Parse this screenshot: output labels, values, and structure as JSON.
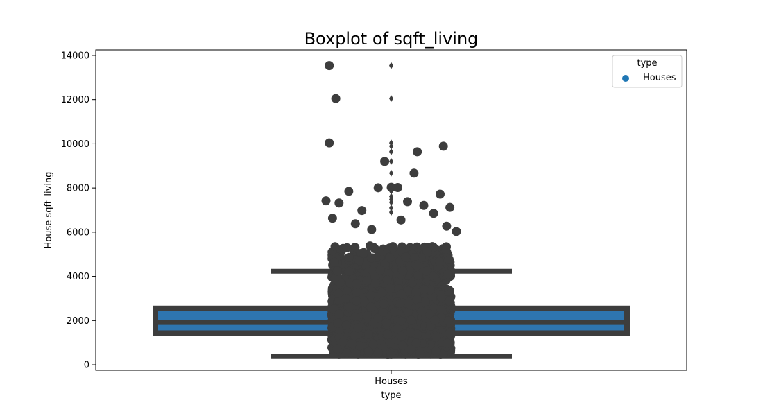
{
  "chart_data": {
    "type": "box",
    "title": "Boxplot of sqft_living",
    "xlabel": "type",
    "ylabel": "House sqft_living",
    "categories": [
      "Houses"
    ],
    "ylim": [
      -250,
      14250
    ],
    "yticks": [
      0,
      2000,
      4000,
      6000,
      8000,
      10000,
      12000,
      14000
    ],
    "box": {
      "category": "Houses",
      "q1": 1430,
      "median": 1910,
      "q3": 2550,
      "whisker_low": 370,
      "whisker_high": 4230
    },
    "outliers": [
      13540,
      12050,
      10040,
      9890,
      9640,
      9200,
      8670,
      8010,
      7850,
      7620,
      7480,
      7350,
      7100,
      6900
    ],
    "strip_points_sample": [
      {
        "jitter": -0.19,
        "y": 13540
      },
      {
        "jitter": -0.17,
        "y": 12050
      },
      {
        "jitter": -0.19,
        "y": 10040
      },
      {
        "jitter": 0.16,
        "y": 9890
      },
      {
        "jitter": 0.08,
        "y": 9640
      },
      {
        "jitter": -0.02,
        "y": 9200
      },
      {
        "jitter": 0.07,
        "y": 8670
      },
      {
        "jitter": -0.04,
        "y": 8010
      },
      {
        "jitter": -0.0,
        "y": 8030
      },
      {
        "jitter": 0.02,
        "y": 8020
      },
      {
        "jitter": -0.13,
        "y": 7850
      },
      {
        "jitter": 0.15,
        "y": 7720
      },
      {
        "jitter": -0.2,
        "y": 7420
      },
      {
        "jitter": -0.16,
        "y": 7320
      },
      {
        "jitter": 0.05,
        "y": 7380
      },
      {
        "jitter": 0.1,
        "y": 7210
      },
      {
        "jitter": 0.18,
        "y": 7120
      },
      {
        "jitter": -0.09,
        "y": 6980
      },
      {
        "jitter": 0.13,
        "y": 6850
      },
      {
        "jitter": -0.18,
        "y": 6630
      },
      {
        "jitter": 0.03,
        "y": 6550
      },
      {
        "jitter": -0.11,
        "y": 6380
      },
      {
        "jitter": 0.17,
        "y": 6270
      },
      {
        "jitter": -0.06,
        "y": 6120
      },
      {
        "jitter": 0.2,
        "y": 6030
      }
    ],
    "legend": {
      "title": "type",
      "entries": [
        {
          "label": "Houses",
          "color": "#1f77b4"
        }
      ],
      "position": "top-right"
    },
    "colors": {
      "box_fill": "#2e75b0",
      "box_edge": "#3d3d3d",
      "points": "#3d3d3d",
      "legend_marker": "#1f77b4"
    },
    "grid": false
  }
}
